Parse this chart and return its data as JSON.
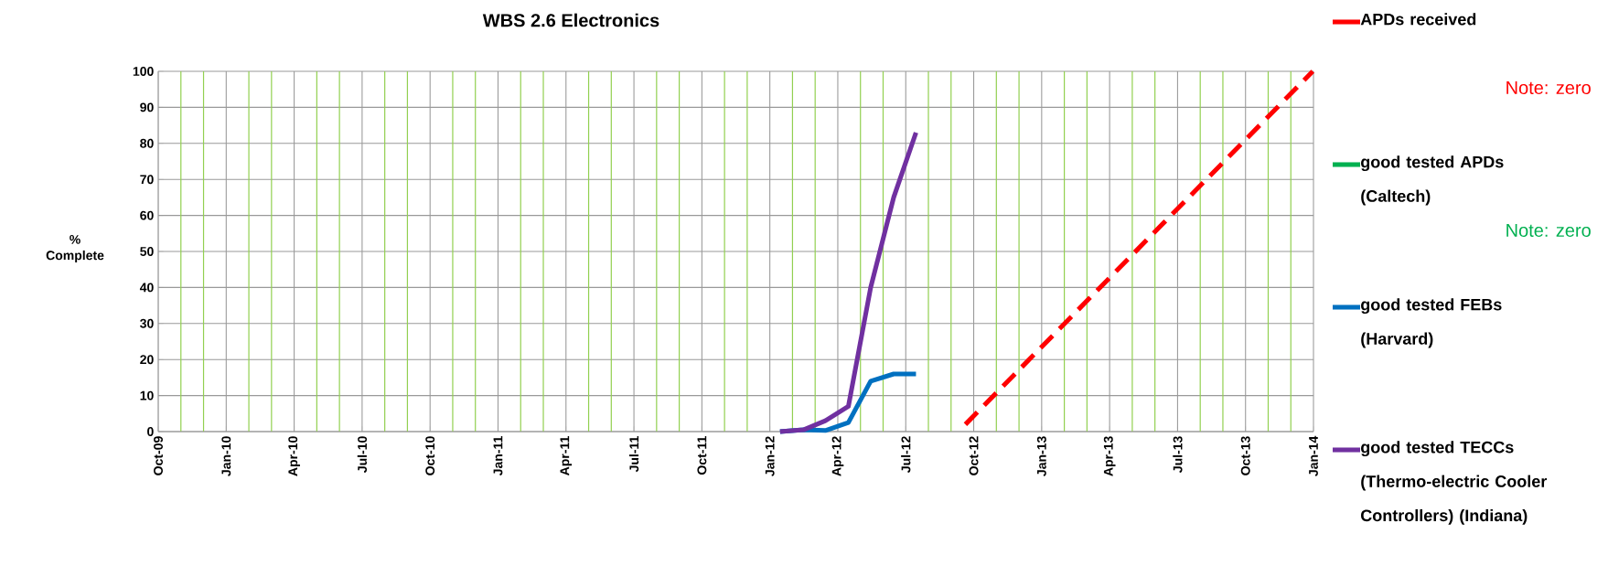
{
  "chart_data": {
    "type": "line",
    "title": "WBS 2.6 Electronics",
    "ylabel": "% Complete",
    "xlim": [
      "2009-10",
      "2014-01"
    ],
    "xticks": [
      {
        "value": "2009-10",
        "label": "Oct-09"
      },
      {
        "value": "2009-11",
        "label": null
      },
      {
        "value": "2009-12",
        "label": null
      },
      {
        "value": "2010-01",
        "label": "Jan-10"
      },
      {
        "value": "2010-02",
        "label": null
      },
      {
        "value": "2010-03",
        "label": null
      },
      {
        "value": "2010-04",
        "label": "Apr-10"
      },
      {
        "value": "2010-05",
        "label": null
      },
      {
        "value": "2010-06",
        "label": null
      },
      {
        "value": "2010-07",
        "label": "Jul-10"
      },
      {
        "value": "2010-08",
        "label": null
      },
      {
        "value": "2010-09",
        "label": null
      },
      {
        "value": "2010-10",
        "label": "Oct-10"
      },
      {
        "value": "2010-11",
        "label": null
      },
      {
        "value": "2010-12",
        "label": null
      },
      {
        "value": "2011-01",
        "label": "Jan-11"
      },
      {
        "value": "2011-02",
        "label": null
      },
      {
        "value": "2011-03",
        "label": null
      },
      {
        "value": "2011-04",
        "label": "Apr-11"
      },
      {
        "value": "2011-05",
        "label": null
      },
      {
        "value": "2011-06",
        "label": null
      },
      {
        "value": "2011-07",
        "label": "Jul-11"
      },
      {
        "value": "2011-08",
        "label": null
      },
      {
        "value": "2011-09",
        "label": null
      },
      {
        "value": "2011-10",
        "label": "Oct-11"
      },
      {
        "value": "2011-11",
        "label": null
      },
      {
        "value": "2011-12",
        "label": null
      },
      {
        "value": "2012-01",
        "label": "Jan-12"
      },
      {
        "value": "2012-02",
        "label": null
      },
      {
        "value": "2012-03",
        "label": null
      },
      {
        "value": "2012-04",
        "label": "Apr-12"
      },
      {
        "value": "2012-05",
        "label": null
      },
      {
        "value": "2012-06",
        "label": null
      },
      {
        "value": "2012-07",
        "label": "Jul-12"
      },
      {
        "value": "2012-08",
        "label": null
      },
      {
        "value": "2012-09",
        "label": null
      },
      {
        "value": "2012-10",
        "label": "Oct-12"
      },
      {
        "value": "2012-11",
        "label": null
      },
      {
        "value": "2012-12",
        "label": null
      },
      {
        "value": "2013-01",
        "label": "Jan-13"
      },
      {
        "value": "2013-02",
        "label": null
      },
      {
        "value": "2013-03",
        "label": null
      },
      {
        "value": "2013-04",
        "label": "Apr-13"
      },
      {
        "value": "2013-05",
        "label": null
      },
      {
        "value": "2013-06",
        "label": null
      },
      {
        "value": "2013-07",
        "label": "Jul-13"
      },
      {
        "value": "2013-08",
        "label": null
      },
      {
        "value": "2013-09",
        "label": null
      },
      {
        "value": "2013-10",
        "label": "Oct-13"
      },
      {
        "value": "2013-11",
        "label": null
      },
      {
        "value": "2013-12",
        "label": null
      },
      {
        "value": "2014-01",
        "label": "Jan-14"
      }
    ],
    "ylim": [
      0,
      100
    ],
    "yticks": [
      0,
      10,
      20,
      30,
      40,
      50,
      60,
      70,
      80,
      90,
      100
    ],
    "grid": true,
    "legend": "right",
    "series": [
      {
        "name": "APDs received",
        "color": "#ff0000",
        "line_style": "dashed",
        "x": [
          "2012-09-20",
          "2013-12-31"
        ],
        "values": [
          2,
          100
        ]
      },
      {
        "name": "good tested APDs (Caltech)",
        "color": "#00b050"
      },
      {
        "name": "good tested FEBs (Harvard)",
        "color": "#0070c0",
        "x": [
          "2012-01-15",
          "2012-02-15",
          "2012-03-15",
          "2012-04-15",
          "2012-05-15",
          "2012-06-15",
          "2012-07-15"
        ],
        "values": [
          0,
          0.5,
          0.3,
          2.5,
          14,
          16,
          16
        ]
      },
      {
        "name": "good tested TECCs (Thermo-electric Cooler Controllers) (Indiana)",
        "color": "#7030a0",
        "x": [
          "2012-01-15",
          "2012-02-15",
          "2012-03-15",
          "2012-04-15",
          "2012-05-15",
          "2012-06-15",
          "2012-07-15"
        ],
        "values": [
          0,
          0.5,
          3,
          7,
          40,
          65,
          83
        ]
      }
    ],
    "annotations": [
      "Note: zero",
      "Note: zero"
    ]
  }
}
